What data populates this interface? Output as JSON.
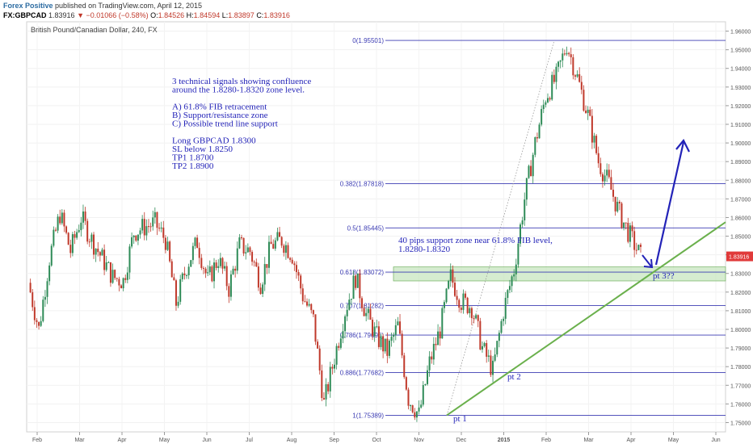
{
  "header": {
    "author": "Forex Positive",
    "published": "published on TradingView.com, April 12, 2015",
    "symbol": "FX:GBPCAD",
    "last": "1.83916",
    "change_arrow": "▼",
    "change": "−0.01066 (−0.58%)",
    "o_label": "O:",
    "o_value": "1.84526",
    "h_label": "H:",
    "h_value": "1.84594",
    "l_label": "L:",
    "l_value": "1.83897",
    "c_label": "C:",
    "c_value": "1.83916"
  },
  "colors": {
    "candle_up": "#2e8b57",
    "candle_down": "#c0392b",
    "fib": "#3b3bb3",
    "trendline": "#6ab04c",
    "zone_fill": "#c8e6c0",
    "annotation": "#2323b8",
    "price_tag": "#e03a3a"
  },
  "chart_data": {
    "type": "candlestick",
    "title": "British Pound/Canadian Dollar, 240, FX",
    "ylim": [
      1.745,
      1.965
    ],
    "y_ticks": [
      "1.96000",
      "1.95000",
      "1.94000",
      "1.93000",
      "1.92000",
      "1.91000",
      "1.90000",
      "1.89000",
      "1.88000",
      "1.87000",
      "1.86000",
      "1.85000",
      "1.84000",
      "1.83000",
      "1.82000",
      "1.81000",
      "1.80000",
      "1.79000",
      "1.78000",
      "1.77000",
      "1.76000",
      "1.75000"
    ],
    "y_tick_values": [
      1.96,
      1.95,
      1.94,
      1.93,
      1.92,
      1.91,
      1.9,
      1.89,
      1.88,
      1.87,
      1.86,
      1.85,
      1.84,
      1.83,
      1.82,
      1.81,
      1.8,
      1.79,
      1.78,
      1.77,
      1.76,
      1.75
    ],
    "x_ticks": [
      "Feb",
      "Mar",
      "Apr",
      "May",
      "Jun",
      "Jul",
      "Aug",
      "Sep",
      "Oct",
      "Nov",
      "Dec",
      "2015",
      "Feb",
      "Mar",
      "Apr",
      "May",
      "Jun"
    ],
    "x_tick_bold": [
      false,
      false,
      false,
      false,
      false,
      false,
      false,
      false,
      false,
      false,
      false,
      true,
      false,
      false,
      false,
      false,
      false
    ],
    "price_path": [
      {
        "t": "Feb",
        "p": 1.825
      },
      {
        "t": "",
        "p": 1.8
      },
      {
        "t": "",
        "p": 1.838
      },
      {
        "t": "",
        "p": 1.862
      },
      {
        "t": "Mar",
        "p": 1.842
      },
      {
        "t": "",
        "p": 1.86
      },
      {
        "t": "",
        "p": 1.848
      },
      {
        "t": "",
        "p": 1.838
      },
      {
        "t": "Apr",
        "p": 1.828
      },
      {
        "t": "",
        "p": 1.826
      },
      {
        "t": "",
        "p": 1.852
      },
      {
        "t": "",
        "p": 1.855
      },
      {
        "t": "May",
        "p": 1.857
      },
      {
        "t": "",
        "p": 1.848
      },
      {
        "t": "",
        "p": 1.814
      },
      {
        "t": "",
        "p": 1.834
      },
      {
        "t": "Jun",
        "p": 1.847
      },
      {
        "t": "",
        "p": 1.826
      },
      {
        "t": "",
        "p": 1.838
      },
      {
        "t": "",
        "p": 1.822
      },
      {
        "t": "Jul",
        "p": 1.845
      },
      {
        "t": "",
        "p": 1.842
      },
      {
        "t": "",
        "p": 1.825
      },
      {
        "t": "",
        "p": 1.845
      },
      {
        "t": "Aug",
        "p": 1.848
      },
      {
        "t": "",
        "p": 1.84
      },
      {
        "t": "",
        "p": 1.818
      },
      {
        "t": "",
        "p": 1.805
      },
      {
        "t": "Sep",
        "p": 1.76
      },
      {
        "t": "",
        "p": 1.785
      },
      {
        "t": "",
        "p": 1.81
      },
      {
        "t": "",
        "p": 1.828
      },
      {
        "t": "Oct",
        "p": 1.808
      },
      {
        "t": "",
        "p": 1.796
      },
      {
        "t": "",
        "p": 1.788
      },
      {
        "t": "",
        "p": 1.802
      },
      {
        "t": "Nov",
        "p": 1.763
      },
      {
        "t": "",
        "p": 1.754
      },
      {
        "t": "",
        "p": 1.782
      },
      {
        "t": "",
        "p": 1.8
      },
      {
        "t": "Dec",
        "p": 1.828
      },
      {
        "t": "",
        "p": 1.815
      },
      {
        "t": "",
        "p": 1.812
      },
      {
        "t": "",
        "p": 1.79
      },
      {
        "t": "2015",
        "p": 1.778
      },
      {
        "t": "",
        "p": 1.81
      },
      {
        "t": "",
        "p": 1.832
      },
      {
        "t": "",
        "p": 1.87
      },
      {
        "t": "Feb",
        "p": 1.9
      },
      {
        "t": "",
        "p": 1.925
      },
      {
        "t": "",
        "p": 1.935
      },
      {
        "t": "",
        "p": 1.953
      },
      {
        "t": "Mar",
        "p": 1.935
      },
      {
        "t": "",
        "p": 1.915
      },
      {
        "t": "",
        "p": 1.89
      },
      {
        "t": "",
        "p": 1.878
      },
      {
        "t": "Apr",
        "p": 1.862
      },
      {
        "t": "",
        "p": 1.85
      },
      {
        "t": "",
        "p": 1.839
      }
    ],
    "fib_levels": [
      {
        "label": "0(1.95501)",
        "value": 1.95501
      },
      {
        "label": "0.382(1.87818)",
        "value": 1.87818
      },
      {
        "label": "0.5(1.85445)",
        "value": 1.85445
      },
      {
        "label": "0.618(1.83072)",
        "value": 1.83072
      },
      {
        "label": "0.707(1.81282)",
        "value": 1.81282
      },
      {
        "label": "0.786(1.79695)",
        "value": 1.79695
      },
      {
        "label": "0.886(1.77682)",
        "value": 1.77682
      },
      {
        "label": "1(1.75389)",
        "value": 1.75389
      }
    ],
    "support_zone": [
      1.826,
      1.8335
    ],
    "current_price_tag": "1.83916",
    "current_price": 1.83916,
    "annotations": {
      "main_lines": [
        "3 technical signals showing confluence",
        "around the 1.8280-1.8320 zone level.",
        "",
        "A) 61.8% FIB retracement",
        "B) Support/resistance zone",
        "C) Possible trend line support",
        "",
        "Long GBPCAD 1.8300",
        "SL below 1.8250",
        "TP1 1.8700",
        "TP2 1.8900"
      ],
      "zone_lines": [
        "40 pips support zone near 61.8% FIB level,",
        "1.8280-1.8320"
      ],
      "pt1": "pt 1",
      "pt2": "pt 2",
      "pt3": "pt 3??"
    }
  }
}
